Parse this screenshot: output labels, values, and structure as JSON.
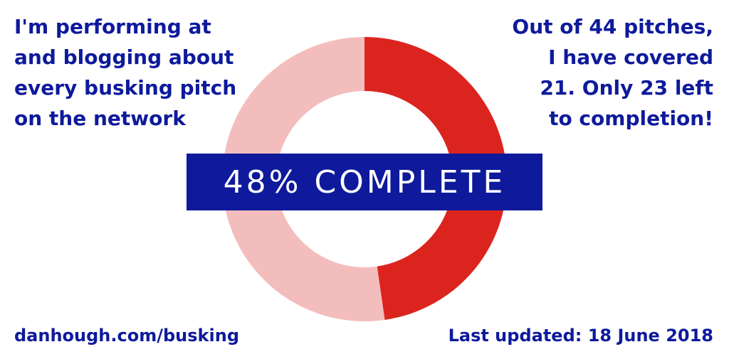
{
  "intro": "I'm performing at\nand blogging about\nevery busking pitch\non the network",
  "summary": "Out of 44 pitches,\nI have covered\n21. Only 23 left\nto completion!",
  "banner": "48% COMPLETE",
  "link": "danhough.com/busking",
  "updated": "Last updated: 18 June 2018",
  "colors": {
    "accent_blue": "#0e1a9b",
    "done_red": "#dc241f",
    "remaining_pink": "#f4bdbd"
  },
  "chart_data": {
    "type": "pie",
    "title": "",
    "categories": [
      "covered",
      "left"
    ],
    "values": [
      21,
      23
    ],
    "total": 44
  }
}
